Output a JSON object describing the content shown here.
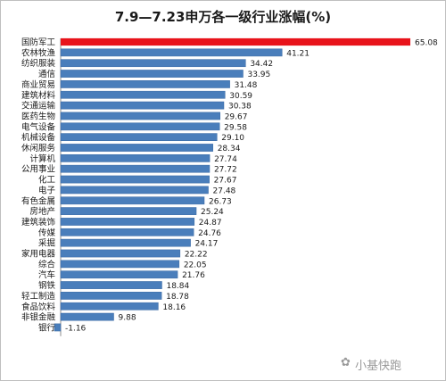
{
  "chart_data": {
    "type": "bar",
    "orientation": "horizontal",
    "title": "7.9—7.23申万各一级行业涨幅(%)",
    "categories": [
      "国防军工",
      "农林牧渔",
      "纺织服装",
      "通信",
      "商业贸易",
      "建筑材料",
      "交通运输",
      "医药生物",
      "电气设备",
      "机械设备",
      "休闲服务",
      "计算机",
      "公用事业",
      "化工",
      "电子",
      "有色金属",
      "房地产",
      "建筑装饰",
      "传媒",
      "采掘",
      "家用电器",
      "综合",
      "汽车",
      "钢铁",
      "轻工制造",
      "食品饮料",
      "非银金融",
      "银行"
    ],
    "values": [
      65.08,
      41.21,
      34.42,
      33.95,
      31.48,
      30.59,
      30.38,
      29.67,
      29.58,
      29.1,
      28.34,
      27.74,
      27.72,
      27.67,
      27.48,
      26.73,
      25.24,
      24.87,
      24.76,
      24.17,
      22.22,
      22.05,
      21.76,
      18.84,
      18.78,
      18.16,
      9.88,
      -1.16
    ],
    "value_labels": [
      "65.08",
      "41.21",
      "34.42",
      "33.95",
      "31.48",
      "30.59",
      "30.38",
      "29.67",
      "29.58",
      "29.10",
      "28.34",
      "27.74",
      "27.72",
      "27.67",
      "27.48",
      "26.73",
      "25.24",
      "24.87",
      "24.76",
      "24.17",
      "22.22",
      "22.05",
      "21.76",
      "18.84",
      "18.78",
      "18.16",
      "9.88",
      "-1.16"
    ],
    "xlim": [
      -1.16,
      65.08
    ],
    "colors": {
      "highlight": "#e8131b",
      "bar": "#4a7ebb",
      "bar_edge": "#3a69a3"
    },
    "highlight_index": 0
  },
  "watermark": "小基快跑"
}
